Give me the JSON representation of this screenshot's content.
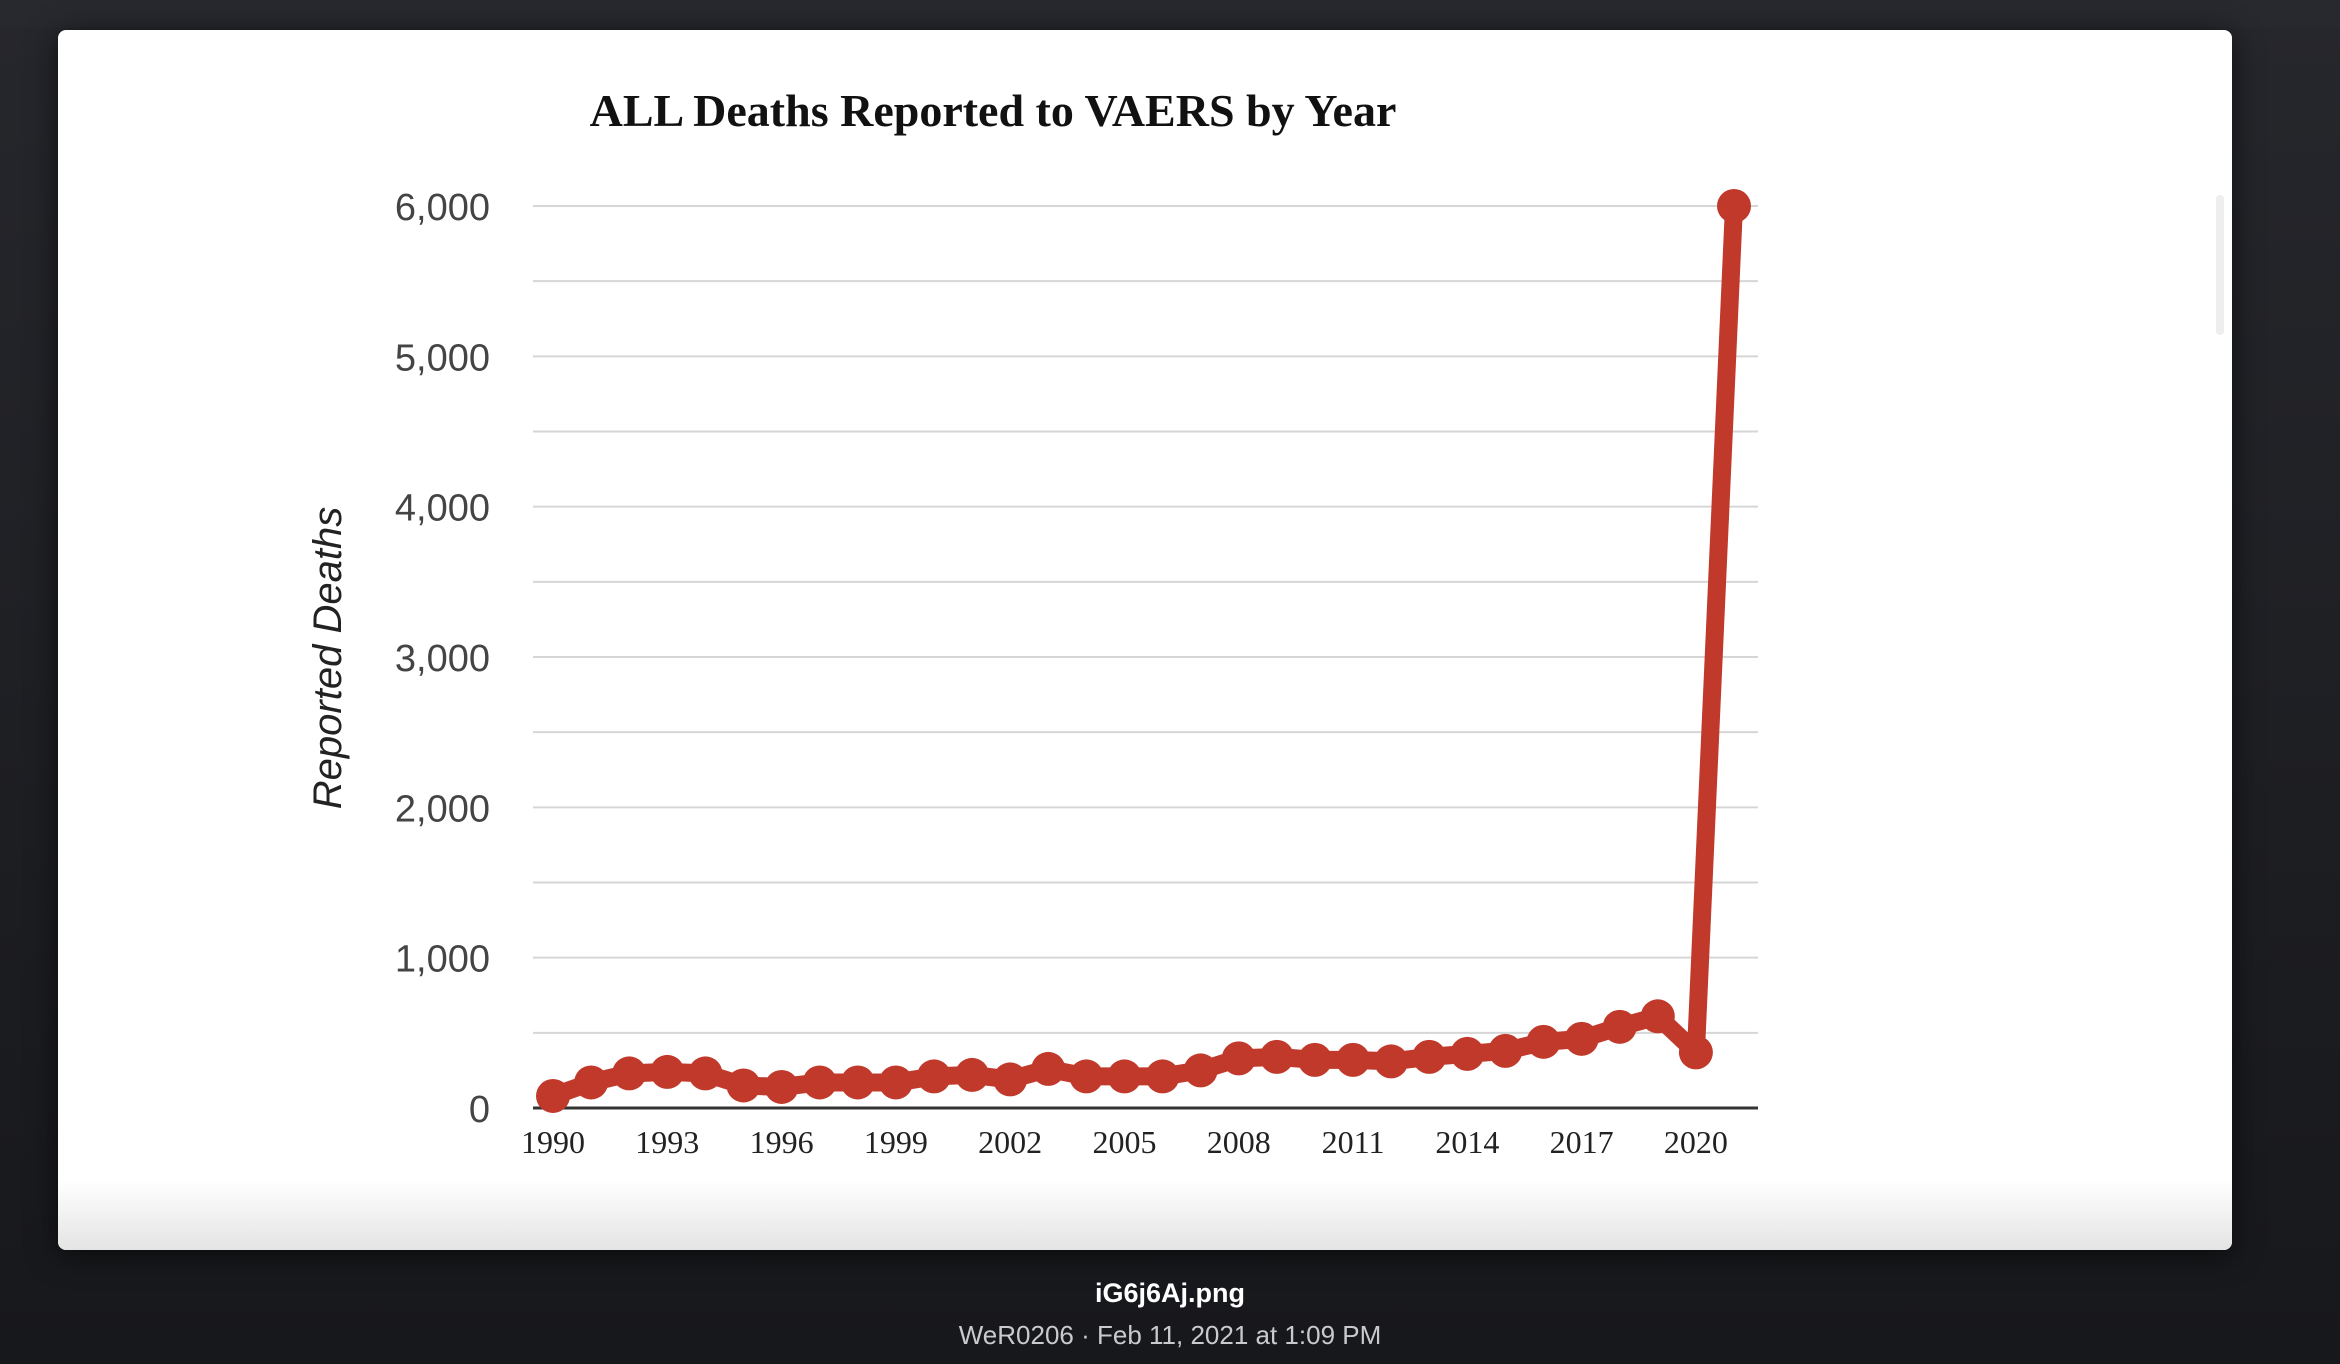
{
  "viewer": {
    "filename": "iG6j6Aj.png",
    "meta": "WeR0206 · Feb 11, 2021 at 1:09 PM"
  },
  "colors": {
    "line": "#c0392b",
    "grid": "#d6d6d6",
    "axis": "#333333"
  },
  "chart_data": {
    "type": "line",
    "title": "ALL Deaths Reported to VAERS by Year",
    "xlabel": "",
    "ylabel": "Reported Deaths",
    "ylim": [
      0,
      6000
    ],
    "yticks": [
      0,
      1000,
      2000,
      3000,
      4000,
      5000,
      6000
    ],
    "ytick_labels": [
      "0",
      "1,000",
      "2,000",
      "3,000",
      "4,000",
      "5,000",
      "6,000"
    ],
    "xticks": [
      1990,
      1993,
      1996,
      1999,
      2002,
      2005,
      2008,
      2011,
      2014,
      2017,
      2020
    ],
    "xlim": [
      1990,
      2021
    ],
    "grid": true,
    "legend": "none",
    "series": [
      {
        "x": [
          1990,
          1991,
          1992,
          1993,
          1994,
          1995,
          1996,
          1997,
          1998,
          1999,
          2000,
          2001,
          2002,
          2003,
          2004,
          2005,
          2006,
          2007,
          2008,
          2009,
          2010,
          2011,
          2012,
          2013,
          2014,
          2015,
          2016,
          2017,
          2018,
          2019,
          2020,
          2021
        ],
        "values": [
          80,
          170,
          230,
          240,
          230,
          150,
          140,
          170,
          170,
          170,
          210,
          220,
          190,
          260,
          210,
          210,
          210,
          250,
          330,
          340,
          320,
          320,
          310,
          340,
          360,
          380,
          440,
          460,
          540,
          610,
          370,
          6000
        ]
      }
    ]
  }
}
